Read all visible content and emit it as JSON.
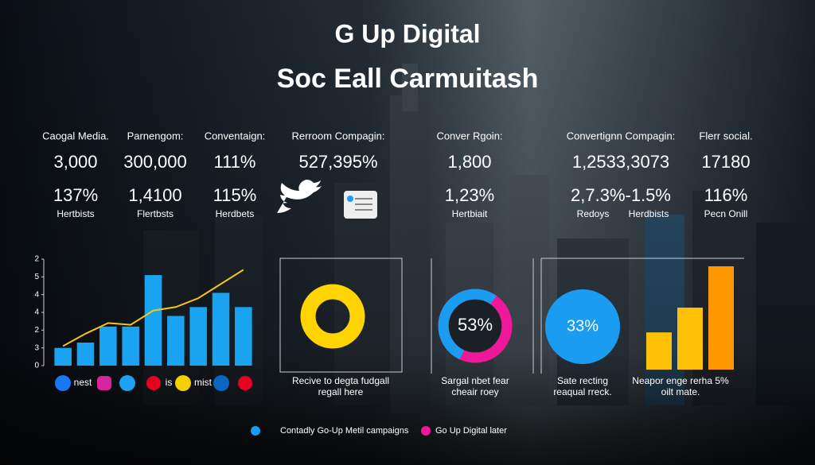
{
  "header": {
    "title": "G Up Digital",
    "subtitle": "Soc Eall Carmuitash"
  },
  "stats": [
    {
      "label": "Caogal Media.",
      "values": [
        "3,000",
        "137%"
      ],
      "notes": [
        "Hertbists"
      ]
    },
    {
      "label": "Parnengom:",
      "values": [
        "300,000",
        "1,4100"
      ],
      "notes": [
        "Flertbsts"
      ]
    },
    {
      "label": "Conventaign:",
      "values": [
        "111%",
        "115%"
      ],
      "notes": [
        "Herdbets"
      ]
    },
    {
      "label": "Rerroom Compagin:",
      "values": [
        "527,395%"
      ],
      "notes": []
    },
    {
      "label": "Conver Rgoin:",
      "values": [
        "1,800",
        "1,23%"
      ],
      "notes": [
        "Hertbiait"
      ]
    },
    {
      "label": "Convertignn Compagin:",
      "values": [
        "1,2533,3073",
        "2,7.3%-1.5%"
      ],
      "notes": [
        "Redoys",
        "Herdbists"
      ]
    },
    {
      "label": "Flerr social.",
      "values": [
        "17180",
        "116%"
      ],
      "notes": [
        "Pecn Onill"
      ]
    }
  ],
  "social_labels": [
    "nest",
    "is",
    "mist"
  ],
  "chart_data": [
    {
      "type": "bar",
      "categories": [
        null,
        null,
        null,
        null,
        null,
        null,
        null,
        null,
        null
      ],
      "series": [
        {
          "style": "bar",
          "color": "#1aa3f0",
          "values": [
            1.0,
            1.3,
            2.2,
            2.2,
            5.1,
            2.8,
            3.3,
            4.1,
            3.3
          ]
        },
        {
          "style": "line",
          "color": "#f5c518",
          "values": [
            1.1,
            1.8,
            2.4,
            2.3,
            3.1,
            3.3,
            3.8,
            4.6,
            5.4
          ]
        }
      ],
      "ylim": [
        0,
        6
      ],
      "yticks": [
        0,
        {
          "value": 1,
          "label": "3"
        },
        2,
        {
          "value": 3,
          "label": "4"
        },
        4,
        5,
        {
          "value": 6,
          "label": "2"
        }
      ]
    },
    {
      "type": "donut",
      "values": [
        100
      ],
      "colors": [
        "#ffd400"
      ],
      "caption": [
        "Recive to degta fudgall",
        "regall here"
      ]
    },
    {
      "type": "donut",
      "values": [
        53
      ],
      "value_labels": [
        "53%"
      ],
      "colors": [
        "#1a9cf0",
        "#f0189a"
      ],
      "caption": [
        "Sargal nbet fear",
        "cheair roey"
      ]
    },
    {
      "type": "circle",
      "values": [
        33
      ],
      "value_labels": [
        "33%"
      ],
      "colors": [
        "#1a9cf0"
      ],
      "caption": [
        "Sate recting",
        "reaqual rreck."
      ]
    },
    {
      "type": "plainbar",
      "values": [
        18,
        30,
        50
      ],
      "colors": [
        "#ffc107",
        "#ffc107",
        "#ff9800"
      ],
      "caption": [
        "Neapor enge rerha 5%",
        "oilt mate."
      ]
    }
  ],
  "legend": [
    {
      "name": "Contadly Go-Up Metil campaigns",
      "color": "#1a9cf0"
    },
    {
      "name": "Go Up Digital later",
      "color": "#f0189a"
    }
  ]
}
